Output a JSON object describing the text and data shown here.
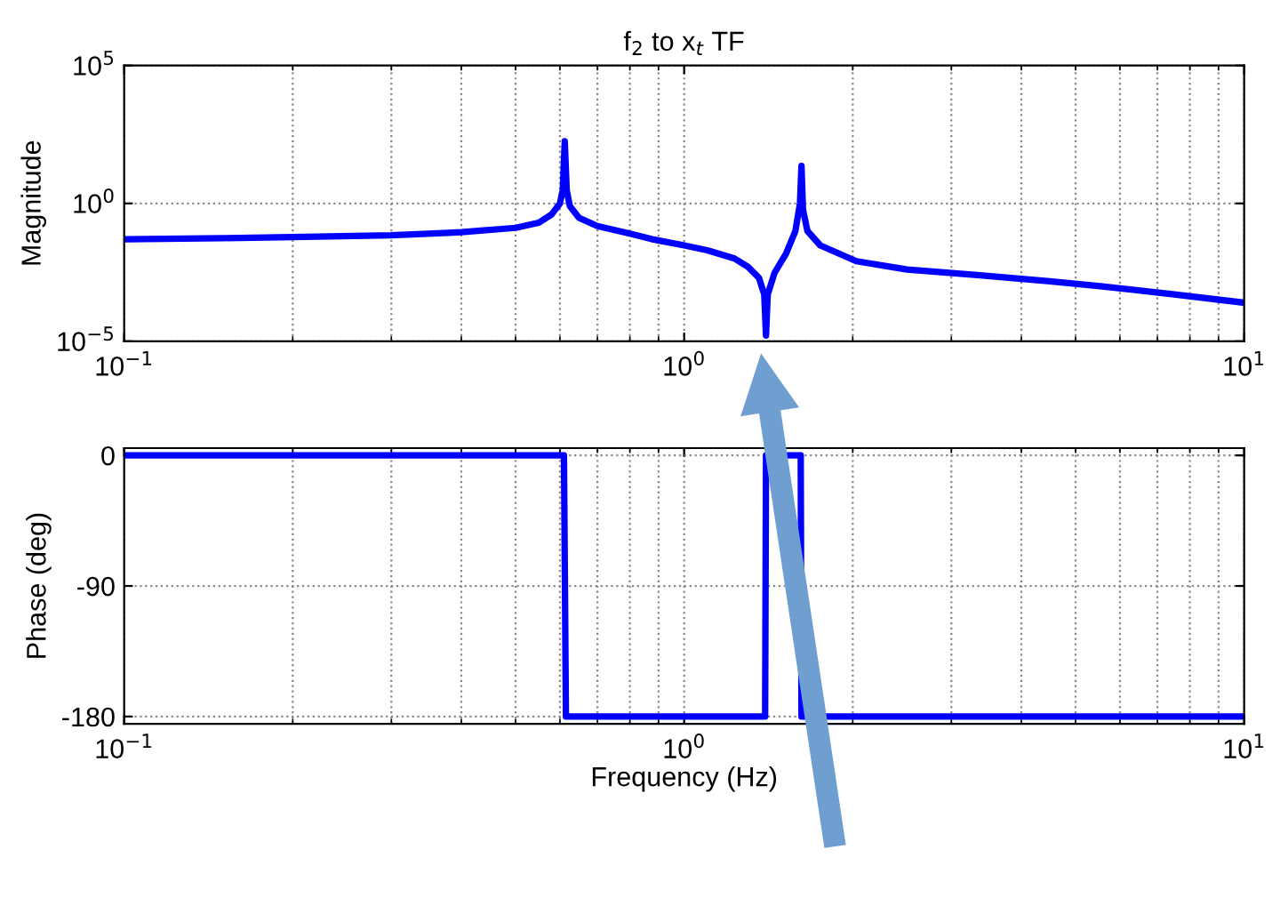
{
  "chart_data": [
    {
      "type": "line",
      "title": "f$_{2}$ to x$_{t}$ TF",
      "ylabel": "Magnitude",
      "log": "xy",
      "grid": true,
      "legend": false,
      "marker": "none",
      "line_style": "solid",
      "xlim": [
        0.1,
        10
      ],
      "xticks": [
        {
          "value": 0.1,
          "label": "10$^{−1}$"
        },
        {
          "value": 1,
          "label": "10$^{0}$"
        },
        {
          "value": 10,
          "label": "10$^{1}$"
        }
      ],
      "ylim": [
        1e-05,
        100000
      ],
      "yticks": [
        {
          "value": 1e-05,
          "label": "10$^{−5}$"
        },
        {
          "value": 1,
          "label": "10$^{0}$"
        },
        {
          "value": 100000,
          "label": "10$^{5}$"
        }
      ],
      "series": [
        {
          "color": "#0000ff",
          "x": [
            0.1,
            0.15,
            0.2,
            0.3,
            0.4,
            0.5,
            0.55,
            0.58,
            0.6,
            0.607,
            0.612,
            0.617,
            0.625,
            0.649,
            0.7,
            0.8,
            0.877,
            1.0,
            1.1,
            1.23,
            1.3,
            1.36,
            1.39,
            1.4,
            1.41,
            1.45,
            1.52,
            1.58,
            1.61,
            1.62,
            1.63,
            1.66,
            1.75,
            2.03,
            2.5,
            3.34,
            4.5,
            5.53,
            7.5,
            10
          ],
          "values": [
            0.05,
            0.055,
            0.06,
            0.07,
            0.09,
            0.13,
            0.2,
            0.4,
            1.0,
            3,
            180,
            3,
            0.8,
            0.3,
            0.15,
            0.08,
            0.05,
            0.03,
            0.02,
            0.01,
            0.005,
            0.002,
            0.0005,
            1.6e-05,
            0.0005,
            0.003,
            0.015,
            0.1,
            1,
            23,
            0.6,
            0.1,
            0.03,
            0.008,
            0.004,
            0.0025,
            0.0015,
            0.001,
            0.0005,
            0.00025
          ]
        }
      ]
    },
    {
      "type": "line",
      "xlabel": "Frequency (Hz)",
      "ylabel": "Phase (deg)",
      "log": "x",
      "grid": true,
      "legend": false,
      "marker": "none",
      "line_style": "solid",
      "xlim": [
        0.1,
        10
      ],
      "xticks": [
        {
          "value": 0.1,
          "label": "10$^{−1}$"
        },
        {
          "value": 1,
          "label": "10$^{0}$"
        },
        {
          "value": 10,
          "label": "10$^{1}$"
        }
      ],
      "ylim": [
        -185,
        5
      ],
      "yticks": [
        -180,
        -90,
        0
      ],
      "series": [
        {
          "color": "#0000ff",
          "x": [
            0.1,
            0.61,
            0.615,
            1.395,
            1.4,
            1.615,
            1.62,
            10
          ],
          "values": [
            0,
            0,
            -180,
            -180,
            0,
            0,
            -180,
            -180
          ]
        }
      ]
    }
  ]
}
